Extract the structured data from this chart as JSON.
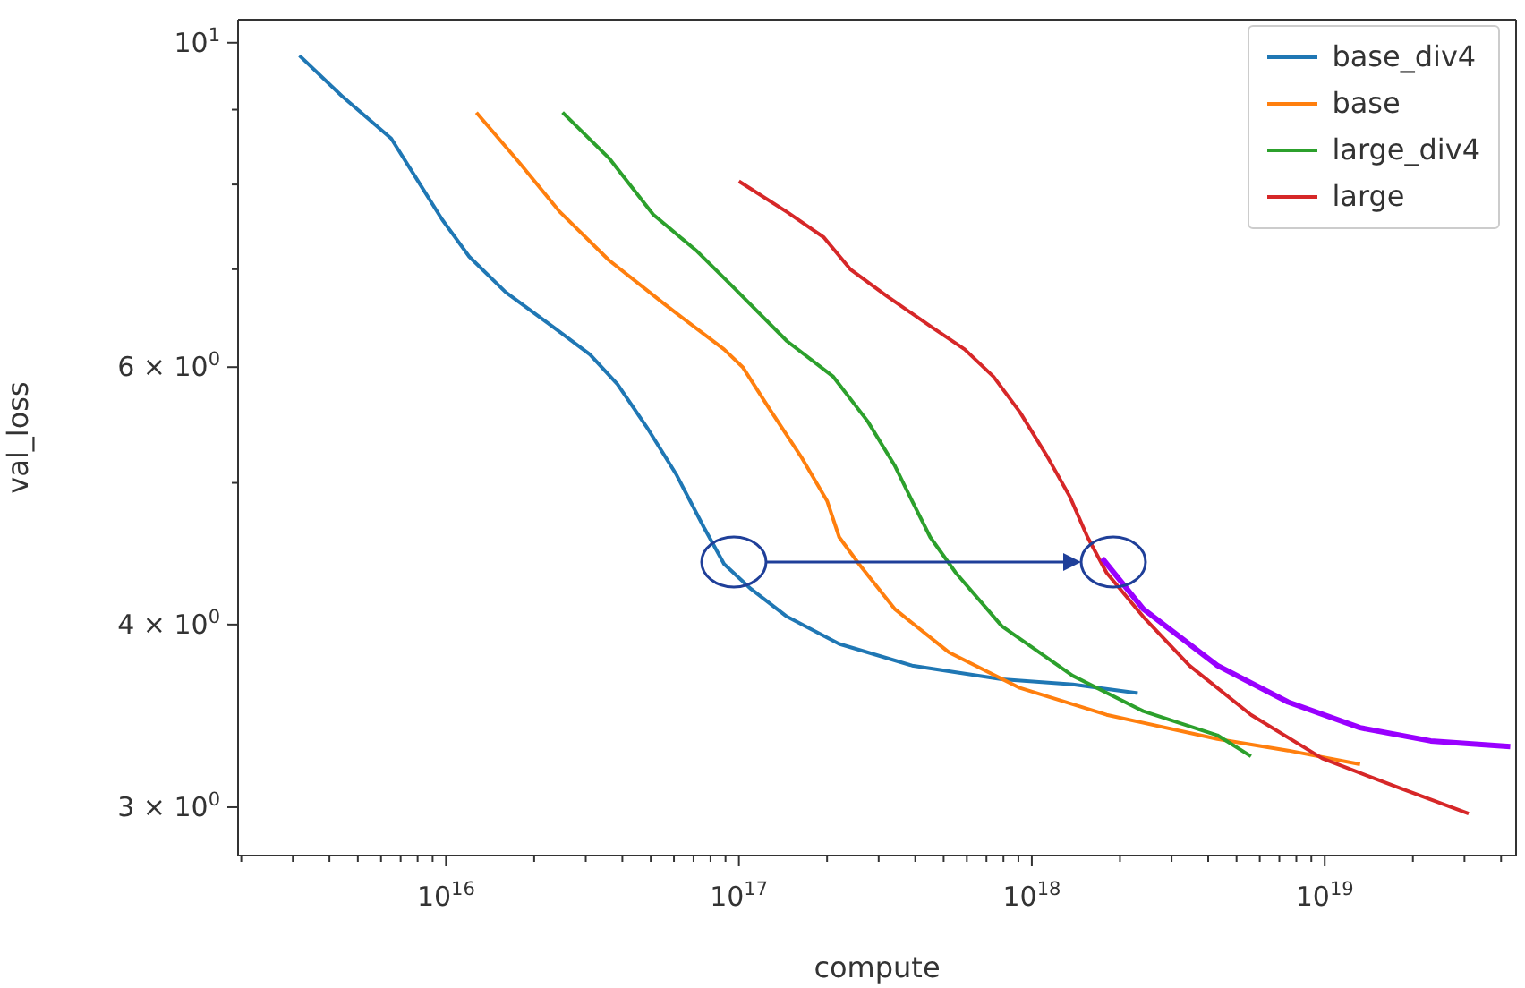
{
  "chart_data": {
    "type": "line",
    "xlabel": "compute",
    "ylabel": "val_loss",
    "log": "xy",
    "legend": "top right",
    "line_style": "solid",
    "marker": "none",
    "xlim": [
      1950000000000000.0,
      4.5e+19
    ],
    "ylim": [
      2.78,
      10.37
    ],
    "xticks": [
      {
        "value": 2000000000000000.0,
        "label": null
      },
      {
        "value": 3000000000000000.0,
        "label": null
      },
      {
        "value": 4000000000000000.0,
        "label": null
      },
      {
        "value": 5000000000000000.0,
        "label": null
      },
      {
        "value": 6000000000000000.0,
        "label": null
      },
      {
        "value": 7000000000000000.0,
        "label": null
      },
      {
        "value": 8000000000000000.0,
        "label": null
      },
      {
        "value": 9000000000000000.0,
        "label": null
      },
      {
        "value": 1e+16,
        "label": "10$^{16}$"
      },
      {
        "value": 2e+16,
        "label": null
      },
      {
        "value": 3e+16,
        "label": null
      },
      {
        "value": 4e+16,
        "label": null
      },
      {
        "value": 5e+16,
        "label": null
      },
      {
        "value": 6e+16,
        "label": null
      },
      {
        "value": 7e+16,
        "label": null
      },
      {
        "value": 8e+16,
        "label": null
      },
      {
        "value": 9e+16,
        "label": null
      },
      {
        "value": 1e+17,
        "label": "10$^{17}$"
      },
      {
        "value": 2e+17,
        "label": null
      },
      {
        "value": 3e+17,
        "label": null
      },
      {
        "value": 4e+17,
        "label": null
      },
      {
        "value": 5e+17,
        "label": null
      },
      {
        "value": 6e+17,
        "label": null
      },
      {
        "value": 7e+17,
        "label": null
      },
      {
        "value": 8e+17,
        "label": null
      },
      {
        "value": 9e+17,
        "label": null
      },
      {
        "value": 1e+18,
        "label": "10$^{18}$"
      },
      {
        "value": 2e+18,
        "label": null
      },
      {
        "value": 3e+18,
        "label": null
      },
      {
        "value": 4e+18,
        "label": null
      },
      {
        "value": 5e+18,
        "label": null
      },
      {
        "value": 6e+18,
        "label": null
      },
      {
        "value": 7e+18,
        "label": null
      },
      {
        "value": 8e+18,
        "label": null
      },
      {
        "value": 9e+18,
        "label": null
      },
      {
        "value": 1e+19,
        "label": "10$^{19}$"
      },
      {
        "value": 2e+19,
        "label": null
      },
      {
        "value": 3e+19,
        "label": null
      },
      {
        "value": 4e+19,
        "label": null
      }
    ],
    "yticks": [
      {
        "value": 3,
        "label": "3 × 10$^{0}$"
      },
      {
        "value": 4,
        "label": "4 × 10$^{0}$"
      },
      {
        "value": 5,
        "label": null
      },
      {
        "value": 6,
        "label": "6 × 10$^{0}$"
      },
      {
        "value": 7,
        "label": null
      },
      {
        "value": 8,
        "label": null
      },
      {
        "value": 9,
        "label": null
      },
      {
        "value": 10,
        "label": "10$^{1}$"
      }
    ],
    "series": [
      {
        "name": "base_div4",
        "color": "#1f77b4",
        "x": [
          3160000000000000.0,
          4400000000000000.0,
          6500000000000000.0,
          8000000000000000.0,
          9700000000000000.0,
          1.2e+16,
          1.6e+16,
          2.35e+16,
          3.1e+16,
          3.85e+16,
          4.9e+16,
          6.1e+16,
          7.6e+16,
          8.9e+16,
          1.1e+17,
          1.46e+17,
          2.2e+17,
          3.9e+17,
          7.9e+17,
          1.38e+18,
          2.3e+18
        ],
        "values": [
          9.8,
          9.2,
          8.6,
          8.05,
          7.57,
          7.14,
          6.75,
          6.38,
          6.12,
          5.84,
          5.44,
          5.07,
          4.66,
          4.4,
          4.23,
          4.05,
          3.88,
          3.75,
          3.67,
          3.64,
          3.59
        ]
      },
      {
        "name": "base",
        "color": "#ff7f0e",
        "x": [
          1.27e+16,
          1.78e+16,
          2.45e+16,
          3.6e+16,
          5.6e+16,
          8.9e+16,
          1.03e+17,
          1.27e+17,
          1.63e+17,
          2e+17,
          2.2e+17,
          2.57e+17,
          3.4e+17,
          5.2e+17,
          9.1e+17,
          1.8e+18,
          4.3e+18,
          7.5e+18,
          1.32e+19
        ],
        "values": [
          8.96,
          8.28,
          7.66,
          7.1,
          6.62,
          6.17,
          6.0,
          5.62,
          5.21,
          4.86,
          4.59,
          4.4,
          4.1,
          3.83,
          3.62,
          3.47,
          3.34,
          3.28,
          3.21
        ]
      },
      {
        "name": "large_div4",
        "color": "#2ca02c",
        "x": [
          2.5e+16,
          3.6e+16,
          5.1e+16,
          7.2e+16,
          9.6e+16,
          1.46e+17,
          2.1e+17,
          2.75e+17,
          3.4e+17,
          3.9e+17,
          4.5e+17,
          5.5e+17,
          7.9e+17,
          1.38e+18,
          2.4e+18,
          4.3e+18,
          5.6e+18
        ],
        "values": [
          8.96,
          8.34,
          7.63,
          7.2,
          6.8,
          6.25,
          5.91,
          5.51,
          5.14,
          4.86,
          4.59,
          4.34,
          3.99,
          3.69,
          3.49,
          3.36,
          3.25
        ]
      },
      {
        "name": "large",
        "color": "#d62728",
        "x": [
          1e+17,
          1.46e+17,
          1.95e+17,
          2.4e+17,
          3.2e+17,
          4.5e+17,
          5.9e+17,
          7.4e+17,
          9.1e+17,
          1.13e+18,
          1.35e+18,
          1.55e+18,
          1.8e+18,
          2.4e+18,
          3.45e+18,
          5.6e+18,
          9.8e+18,
          1.74e+19,
          3.1e+19
        ],
        "values": [
          8.04,
          7.66,
          7.36,
          7.0,
          6.71,
          6.4,
          6.17,
          5.91,
          5.59,
          5.21,
          4.89,
          4.59,
          4.34,
          4.05,
          3.75,
          3.47,
          3.24,
          3.1,
          2.97
        ]
      },
      {
        "color": "#9900ff",
        "x": [
          1.74e+18,
          2.4e+18,
          4.3e+18,
          7.5e+18,
          1.32e+19,
          2.3e+19,
          4.3e+19
        ],
        "values": [
          4.44,
          4.1,
          3.75,
          3.54,
          3.4,
          3.33,
          3.3
        ]
      }
    ]
  }
}
